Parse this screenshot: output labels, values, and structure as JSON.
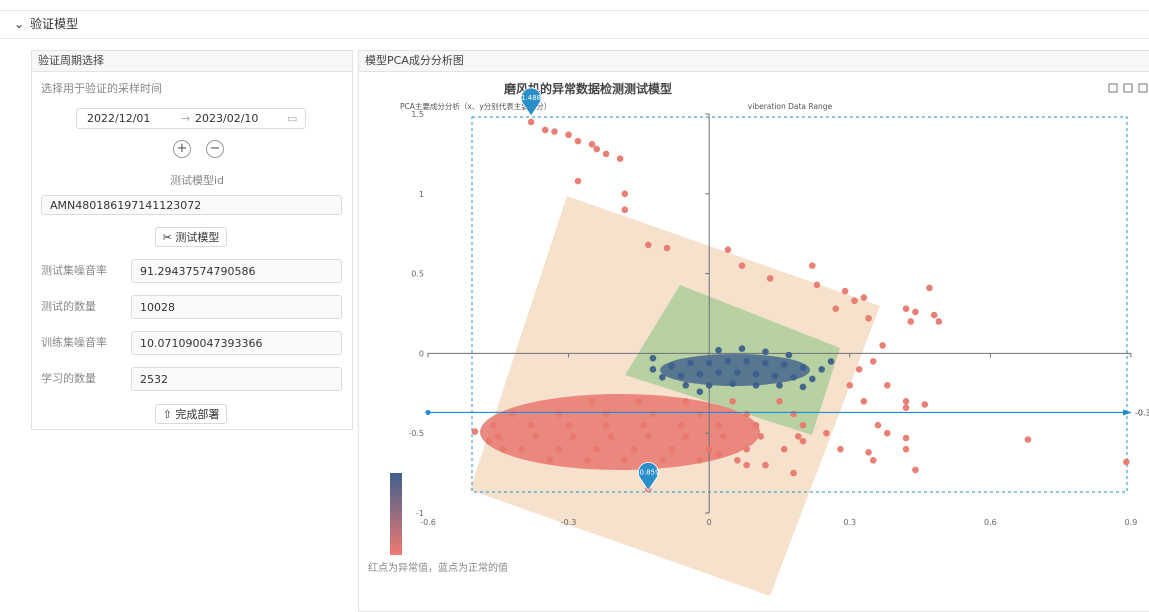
{
  "section": {
    "title": "验证模型"
  },
  "period_panel": {
    "title": "验证周期选择",
    "hint": "选择用于验证的采样时间",
    "start_date": "2022/12/01",
    "end_date": "2023/02/10",
    "model_id_label": "测试模型id",
    "model_id": "AMN480186197141123072",
    "test_button": "测试模型",
    "fields": [
      {
        "label": "测试集噪音率",
        "value": "91.29437574790586"
      },
      {
        "label": "测试的数量",
        "value": "10028"
      },
      {
        "label": "训练集噪音率",
        "value": "10.071090047393366"
      },
      {
        "label": "学习的数量",
        "value": "2532"
      }
    ],
    "deploy_button": "完成部署"
  },
  "chart_panel": {
    "title": "模型PCA成分分析图",
    "caption": "红点为异常值，蓝点为正常的值"
  },
  "chart_data": {
    "type": "scatter",
    "title": "磨风机的异常数据检测测试模型",
    "subtitle": "PCA主要成分分析（x、y分别代表主要成分）",
    "xlabel": "viberation Data Range",
    "xlim": [
      -0.6,
      0.9
    ],
    "xticks": [
      -0.6,
      -0.3,
      0,
      0.3,
      0.6,
      0.9
    ],
    "ylim": [
      -1,
      1.5
    ],
    "yticks": [
      -1,
      -0.5,
      0,
      0.5,
      1,
      1.5
    ],
    "series": [
      {
        "color": "#e8786e",
        "x": [
          -0.38,
          -0.35,
          -0.33,
          -0.3,
          -0.28,
          -0.25,
          -0.24,
          -0.22,
          -0.19,
          -0.28,
          -0.18,
          -0.18,
          -0.13,
          -0.09,
          0.04,
          0.07,
          0.13,
          0.23,
          0.22,
          0.29,
          0.31,
          0.33,
          0.27,
          0.34,
          0.42,
          0.44,
          0.47,
          0.48,
          0.49,
          0.43,
          0.37,
          0.35,
          0.32,
          0.3,
          0.33,
          0.38,
          0.42,
          0.42,
          0.46,
          0.36,
          0.38,
          0.42,
          0.42,
          0.34,
          0.28,
          0.25,
          0.2,
          0.68,
          0.89,
          0.18,
          0.12,
          0.08,
          0.02,
          -0.13,
          -0.5,
          -0.47,
          -0.44,
          0.44,
          0.35,
          -0.25,
          -0.15,
          -0.05,
          0.05,
          0.15,
          -0.42,
          -0.32,
          -0.22,
          -0.12,
          -0.02,
          0.08,
          0.18,
          -0.46,
          -0.38,
          -0.3,
          -0.22,
          -0.14,
          -0.06,
          0.02,
          0.1,
          0.2,
          -0.45,
          -0.37,
          -0.29,
          -0.21,
          -0.13,
          -0.05,
          0.03,
          0.11,
          0.19,
          -0.4,
          -0.32,
          -0.24,
          -0.16,
          -0.08,
          0,
          0.08,
          0.16,
          -0.34,
          -0.26,
          -0.18,
          -0.1,
          -0.02,
          0.06
        ],
        "values": [
          1.45,
          1.4,
          1.39,
          1.37,
          1.33,
          1.31,
          1.28,
          1.25,
          1.22,
          1.08,
          1.0,
          0.9,
          0.68,
          0.66,
          0.65,
          0.55,
          0.47,
          0.43,
          0.55,
          0.39,
          0.33,
          0.35,
          0.28,
          0.22,
          0.28,
          0.26,
          0.41,
          0.24,
          0.2,
          0.2,
          0.05,
          -0.05,
          -0.1,
          -0.2,
          -0.3,
          -0.2,
          -0.3,
          -0.34,
          -0.32,
          -0.45,
          -0.5,
          -0.53,
          -0.6,
          -0.62,
          -0.6,
          -0.5,
          -0.55,
          -0.54,
          -0.68,
          -0.75,
          -0.7,
          -0.7,
          -0.63,
          -0.85,
          -0.49,
          -0.55,
          -0.6,
          -0.73,
          -0.67,
          -0.3,
          -0.3,
          -0.3,
          -0.3,
          -0.3,
          -0.38,
          -0.38,
          -0.38,
          -0.38,
          -0.38,
          -0.38,
          -0.38,
          -0.45,
          -0.45,
          -0.45,
          -0.45,
          -0.45,
          -0.45,
          -0.45,
          -0.45,
          -0.45,
          -0.52,
          -0.52,
          -0.52,
          -0.52,
          -0.52,
          -0.52,
          -0.52,
          -0.52,
          -0.52,
          -0.6,
          -0.6,
          -0.6,
          -0.6,
          -0.6,
          -0.6,
          -0.6,
          -0.6,
          -0.67,
          -0.67,
          -0.67,
          -0.67,
          -0.67,
          -0.67
        ]
      },
      {
        "color": "#3e5f8c",
        "x": [
          -0.12,
          -0.08,
          -0.04,
          0,
          0.04,
          0.08,
          0.12,
          0.16,
          0.2,
          0.24,
          -0.1,
          -0.06,
          -0.02,
          0.02,
          0.06,
          0.1,
          0.14,
          0.18,
          0.22,
          -0.05,
          0,
          0.05,
          0.1,
          0.15,
          0.2,
          0.02,
          0.07,
          0.12,
          0.17,
          -0.12,
          0.26,
          -0.02
        ],
        "values": [
          -0.1,
          -0.08,
          -0.06,
          -0.06,
          -0.05,
          -0.05,
          -0.06,
          -0.07,
          -0.09,
          -0.1,
          -0.15,
          -0.14,
          -0.13,
          -0.12,
          -0.12,
          -0.13,
          -0.14,
          -0.15,
          -0.16,
          -0.2,
          -0.2,
          -0.19,
          -0.2,
          -0.2,
          -0.21,
          0.02,
          0.03,
          0.01,
          -0.01,
          -0.03,
          -0.05,
          -0.24
        ]
      }
    ],
    "mark_points": [
      {
        "x": -0.38,
        "value": 1.488
      },
      {
        "x": -0.13,
        "value": -0.859
      }
    ],
    "mark_line": {
      "value": -0.37
    }
  }
}
